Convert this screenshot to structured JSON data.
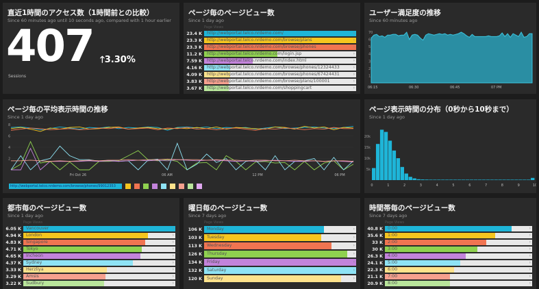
{
  "colors": [
    "#1eb5d8",
    "#f5c51f",
    "#f07451",
    "#8fd14f",
    "#c383db",
    "#8ee3f5",
    "#fde28b",
    "#f6a08e",
    "#b9e69b"
  ],
  "accent": "#1eb5d8",
  "sessions_panel": {
    "title": "直近1時間のアクセス数（1時間前との比較）",
    "subtitle": "Since 60 minutes ago until 10 seconds ago, compared with 1 hour earlier",
    "value": "407",
    "change": "3.30%",
    "change_icon": "arrow-up-icon",
    "label": "Sessions"
  },
  "pageviews_panel": {
    "title": "ページ毎のページビュー数",
    "subtitle": "Since 1 day ago",
    "caption": "Page Views",
    "items": [
      {
        "value": "23.4 K",
        "label": "http://webportal.telco.nrdemo.com/",
        "fill": 1
      },
      {
        "value": "23.3 K",
        "label": "http://webportal.telco.nrdemo.com/browse/plans",
        "fill": 1
      },
      {
        "value": "23.3 K",
        "label": "http://webportal.telco.nrdemo.com/browse/phones",
        "fill": 1
      },
      {
        "value": "11.2 K",
        "label": "http://webportal.telco.nrdemo.com/login.jsp",
        "fill": 0.48
      },
      {
        "value": "7.59 K",
        "label": "http://webportal.telco.nrdemo.com/index.html",
        "fill": 0.32
      },
      {
        "value": "4.16 K",
        "label": "http://webportal.telco.nrdemo.com/browse/phones/12324433",
        "fill": 0.17
      },
      {
        "value": "4.09 K",
        "label": "http://webportal.telco.nrdemo.com/browse/phones/67424431",
        "fill": 0.17
      },
      {
        "value": "3.83 K",
        "label": "http://webportal.telco.nrdemo.com/browse/plans/100001",
        "fill": 0.16
      },
      {
        "value": "3.67 K",
        "label": "http://webportal.telco.nrdemo.com/shoppingcart",
        "fill": 0.16
      }
    ]
  },
  "satisfaction_panel": {
    "title": "ユーザー満足度の推移",
    "subtitle": "Since 60 minutes ago",
    "chart_data": {
      "type": "area",
      "ylim": [
        0,
        70
      ],
      "yticks": [
        "10",
        "20",
        "30",
        "40",
        "50",
        "60",
        "70"
      ],
      "xticks": [
        "06:15",
        "06:30",
        "06:45",
        "07 PM"
      ],
      "values": [
        62,
        66,
        67,
        64,
        65,
        63,
        66,
        66,
        67,
        67,
        65,
        66,
        66,
        70,
        60,
        66,
        67,
        66,
        62,
        59,
        66,
        68,
        67,
        66,
        67,
        68,
        67,
        68,
        66,
        67,
        66,
        67,
        68,
        70,
        68,
        65,
        63,
        67,
        64,
        64,
        64,
        64,
        64,
        65,
        64,
        64,
        64,
        65,
        69,
        64,
        68,
        63,
        68,
        66,
        64,
        70,
        63,
        64,
        68,
        68
      ]
    }
  },
  "avgtime_panel": {
    "title": "ページ毎の平均表示時間の推移",
    "subtitle": "Since 1 day ago",
    "chart_data": {
      "type": "line",
      "ylim": [
        0,
        8
      ],
      "yticks": [
        "2",
        "4",
        "6",
        "8"
      ],
      "xticks": [
        "Fri Oct 26",
        "06 AM",
        "12 PM",
        "06 PM"
      ],
      "legend_first": "http://webportal.telco.nrdemo.com/browse/phones/99012353",
      "series": [
        {
          "values": [
            7.5,
            7.6,
            7.4,
            7.1,
            7.3,
            7.6,
            7.4,
            7.2,
            7.5,
            7.4,
            7.6,
            7.3,
            7.5,
            7.4,
            7.6,
            7.5,
            7.0,
            7.5,
            7.6,
            7.4,
            7.6,
            7.3,
            7.5,
            7.4,
            7.5,
            7.2,
            7.4,
            7.6,
            7.3,
            7.4,
            7.5,
            7.6,
            7.4,
            7.3,
            7.5,
            7.7
          ]
        },
        {
          "values": [
            7.3,
            7.5,
            7.2,
            6.8,
            7.4,
            7.2,
            7.5,
            7.6,
            7.2,
            7.3,
            7.5,
            7.6,
            7.2,
            7.4,
            7.5,
            7.3,
            7.2,
            7.4,
            7.3,
            7.5,
            7.3,
            7.6,
            7.2,
            7.5,
            7.4,
            7.3,
            7.2,
            7.6,
            7.5,
            7.2,
            7.7,
            7.4,
            7.6,
            7.1,
            7.5,
            7.4
          ]
        },
        {
          "values": [
            7.0,
            7.2,
            7.4,
            7.3,
            7.1,
            7.2,
            7.3,
            7.1,
            7.2,
            7.4,
            7.3,
            7.5,
            7.2,
            7.3,
            7.4,
            7.1,
            7.4,
            7.3,
            7.5,
            7.2,
            7.3,
            7.1,
            7.3,
            7.4,
            7.2,
            7.0,
            7.3,
            7.2,
            7.4,
            7.3,
            7.1,
            7.3,
            7.2,
            7.5,
            7.3,
            7.3
          ]
        },
        {
          "values": [
            0,
            1.0,
            5,
            1.2,
            1.5,
            0,
            1.4,
            0,
            0,
            1.5,
            1.5,
            1.6,
            2.5,
            3.4,
            1.8,
            1.6,
            1.8,
            1.5,
            0,
            1.2,
            1.3,
            0,
            2.5,
            1.5,
            0,
            1.4,
            1.5,
            1.2,
            1.3,
            0,
            1.5,
            0,
            1.2,
            1.6,
            0,
            1.0
          ]
        },
        {
          "values": [
            0,
            2.5,
            0,
            1.6,
            2.0,
            4.2,
            2.5,
            1.8,
            1.8,
            1.5,
            1.7,
            1.5,
            1.6,
            0,
            1.7,
            1.9,
            0,
            4.7,
            0,
            1.0,
            2.8,
            1.3,
            2.0,
            0,
            1.5,
            1.7,
            0,
            2.5,
            0,
            1.5,
            1.6,
            2.0,
            0,
            2.2,
            0,
            1.6
          ]
        },
        {
          "values": [
            0,
            0,
            3.8,
            0,
            1.5,
            1.5,
            1.5,
            1.5,
            1.6,
            1.5,
            1.6,
            1.5,
            1.6,
            1.7,
            1.6,
            1.7,
            1.6,
            1.8,
            1.7,
            1.6,
            1.7,
            1.7,
            1.6,
            1.5,
            1.6,
            1.5,
            1.6,
            1.7,
            1.6,
            1.5,
            1.5,
            1.6,
            1.5,
            1.6,
            1.5,
            1.4
          ]
        },
        {
          "values": [
            1.6,
            1.6,
            1.7,
            1.6,
            1.5,
            1.6,
            1.5,
            1.6,
            1.7,
            1.6,
            1.7,
            1.7,
            1.8,
            1.7,
            1.8,
            1.8,
            1.9,
            1.8,
            1.8,
            1.8,
            1.7,
            1.8,
            1.7,
            1.7,
            1.6,
            1.7,
            1.7,
            1.6,
            1.6,
            1.7,
            1.6,
            1.6,
            1.5,
            1.6,
            1.6,
            1.5
          ]
        }
      ]
    }
  },
  "distribution_panel": {
    "title": "ページ表示時間の分布（0秒から10秒まで）",
    "subtitle": "Since 1 day ago",
    "chart_data": {
      "type": "bar",
      "xlim": [
        0,
        10
      ],
      "ylim": [
        0,
        25000
      ],
      "yticks": [
        "5k",
        "10k",
        "15k",
        "20k"
      ],
      "xticks": [
        "0",
        "1",
        "2",
        "3",
        "4",
        "5",
        "6",
        "7",
        "8",
        "9",
        "10"
      ],
      "bin_width": 0.25,
      "values": [
        5500,
        16500,
        23000,
        22000,
        18000,
        13500,
        10000,
        6000,
        3000,
        1500,
        800,
        400,
        300,
        250,
        200,
        200,
        200,
        200,
        200,
        200,
        200,
        200,
        200,
        200,
        200,
        200,
        200,
        200,
        200,
        200,
        200,
        200,
        200,
        200,
        200,
        200,
        200,
        200,
        200,
        1000
      ]
    }
  },
  "city_panel": {
    "title": "都市毎のページビュー数",
    "subtitle": "Since 1 day ago",
    "caption": "Page Views",
    "items": [
      {
        "value": "6.05 K",
        "label": "Vancouver",
        "fill": 1
      },
      {
        "value": "4.94 K",
        "label": "London",
        "fill": 0.82
      },
      {
        "value": "4.83 K",
        "label": "Singapore",
        "fill": 0.8
      },
      {
        "value": "4.71 K",
        "label": "Tokyo",
        "fill": 0.78
      },
      {
        "value": "4.65 K",
        "label": "Incheon",
        "fill": 0.77
      },
      {
        "value": "4.37 K",
        "label": "Sydney",
        "fill": 0.72
      },
      {
        "value": "3.33 K",
        "label": "Herzliya",
        "fill": 0.55
      },
      {
        "value": "3.29 K",
        "label": "Amsis",
        "fill": 0.54
      },
      {
        "value": "3.22 K",
        "label": "Sudbury",
        "fill": 0.53
      }
    ]
  },
  "weekday_panel": {
    "title": "曜日毎のページビュー数",
    "subtitle": "Since 7 days ago",
    "caption": "Page Views",
    "items": [
      {
        "value": "106 K",
        "label": "Monday",
        "fill": 0.79
      },
      {
        "value": "103 K",
        "label": "Tuesday",
        "fill": 0.77
      },
      {
        "value": "113 K",
        "label": "Wednesday",
        "fill": 0.84
      },
      {
        "value": "126 K",
        "label": "Thursday",
        "fill": 0.94
      },
      {
        "value": "134 K",
        "label": "Friday",
        "fill": 1
      },
      {
        "value": "132 K",
        "label": "Saturday",
        "fill": 1
      },
      {
        "value": "120 K",
        "label": "Sunday",
        "fill": 0.9
      }
    ]
  },
  "hour_panel": {
    "title": "時間帯毎のページビュー数",
    "subtitle": "Since 7 days ago",
    "caption": "Page Views",
    "items": [
      {
        "value": "40.8 K",
        "label": "0:00",
        "fill": 0.86
      },
      {
        "value": "35.6 K",
        "label": "1:00",
        "fill": 0.75
      },
      {
        "value": "33 K",
        "label": "2:00",
        "fill": 0.69
      },
      {
        "value": "30 K",
        "label": "3:00",
        "fill": 0.63
      },
      {
        "value": "26.3 K",
        "label": "4:00",
        "fill": 0.55
      },
      {
        "value": "24.1 K",
        "label": "5:00",
        "fill": 0.51
      },
      {
        "value": "22.3 K",
        "label": "6:00",
        "fill": 0.47
      },
      {
        "value": "21.1 K",
        "label": "7:00",
        "fill": 0.44
      },
      {
        "value": "20.9 K",
        "label": "8:00",
        "fill": 0.44
      }
    ]
  }
}
